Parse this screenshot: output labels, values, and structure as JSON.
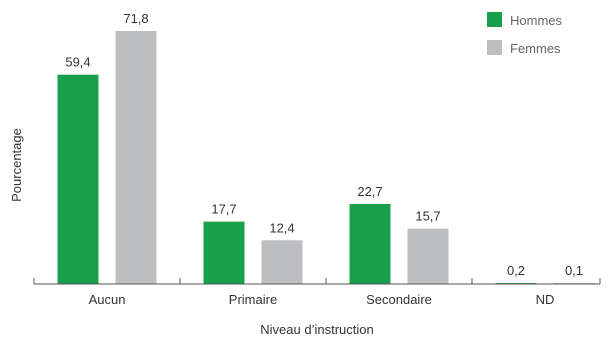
{
  "chart_data": {
    "type": "bar",
    "categories": [
      "Aucun",
      "Primaire",
      "Secondaire",
      "ND"
    ],
    "series": [
      {
        "name": "Hommes",
        "color": "#1aa04a",
        "values": [
          59.4,
          17.7,
          22.7,
          0.2
        ],
        "labels": [
          "59,4",
          "17,7",
          "22,7",
          "0,2"
        ]
      },
      {
        "name": "Femmes",
        "color": "#bdbec0",
        "values": [
          71.8,
          12.4,
          15.7,
          0.1
        ],
        "labels": [
          "71,8",
          "12,4",
          "15,7",
          "0,1"
        ]
      }
    ],
    "xlabel": "Niveau d’instruction",
    "ylabel": "Pourcentage",
    "ylim": [
      0,
      71.8
    ],
    "grid": false,
    "legend": "top-right"
  }
}
